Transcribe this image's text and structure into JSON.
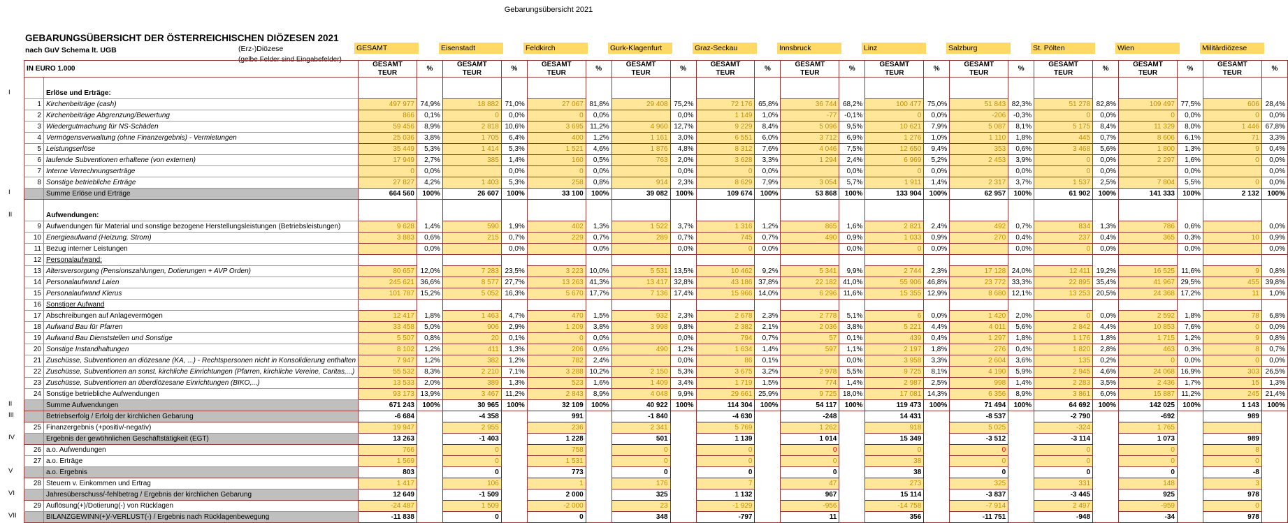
{
  "page_title": "Gebarungsübersicht 2021",
  "header": {
    "title": "GEBARUNGSÜBERSICHT DER ÖSTERREICHISCHEN DIÖZESEN 2021",
    "subtitle": "nach GuV Schema lt. UGB",
    "diocese_label": "(Erz-)Diözese",
    "note": "(gelbe Felder sind Eingabefelder)",
    "unit_label": "IN EURO 1.000",
    "col_value_line1": "GESAMT",
    "col_value_line2": "TEUR",
    "col_pct_label": "%",
    "sum_pct_label": "100%"
  },
  "colors": {
    "input_cell": "#FFE699",
    "diocese_tab": "#FFD966",
    "grid_maroon": "#963634",
    "sum_label_gray": "#BFBFBF",
    "input_text_gold": "#BF8F00",
    "negative_red": "#FF0000"
  },
  "dioceses": [
    "GESAMT",
    "Eisenstadt",
    "Feldkirch",
    "Gurk-Klagenfurt",
    "Graz-Seckau",
    "Innsbruck",
    "Linz",
    "Salzburg",
    "St. Pölten",
    "Wien",
    "Militärdiözese"
  ],
  "rows": [
    {
      "t": "sp",
      "h": 8
    },
    {
      "t": "sec",
      "r": "I",
      "l": "Erlöse und Erträge:"
    },
    {
      "t": "d",
      "n": "1",
      "it": 1,
      "l": "Kirchenbeiträge (cash)",
      "v": [
        "497 977",
        "18 882",
        "27 067",
        "29 408",
        "72 176",
        "36 744",
        "100 477",
        "51 843",
        "51 278",
        "109 497",
        "606"
      ],
      "p": [
        "74,9%",
        "71,0%",
        "81,8%",
        "75,2%",
        "65,8%",
        "68,2%",
        "75,0%",
        "82,3%",
        "82,8%",
        "77,5%",
        "28,4%"
      ]
    },
    {
      "t": "d",
      "n": "2",
      "it": 1,
      "l": "Kirchenbeiträge Abgrenzung/Bewertung",
      "v": [
        "866",
        "0",
        "0",
        "",
        "1 149",
        "-77",
        "0",
        "-206",
        "0",
        "0",
        "0"
      ],
      "p": [
        "0,1%",
        "0,0%",
        "0,0%",
        "0,0%",
        "1,0%",
        "-0,1%",
        "0,0%",
        "-0,3%",
        "0,0%",
        "0,0%",
        "0,0%"
      ]
    },
    {
      "t": "d",
      "n": "3",
      "it": 1,
      "l": "Wiedergutmachung für NS-Schäden",
      "v": [
        "59 456",
        "2 818",
        "3 695",
        "4 960",
        "9 229",
        "5 096",
        "10 621",
        "5 087",
        "5 175",
        "11 329",
        "1 446"
      ],
      "p": [
        "8,9%",
        "10,6%",
        "11,2%",
        "12,7%",
        "8,4%",
        "9,5%",
        "7,9%",
        "8,1%",
        "8,4%",
        "8,0%",
        "67,8%"
      ]
    },
    {
      "t": "d",
      "n": "4",
      "it": 1,
      "l": "Vermögensverwaltung (ohne Finanzergebnis) - Vermietungen",
      "v": [
        "25 036",
        "1 705",
        "400",
        "1 161",
        "6 551",
        "3 712",
        "1 276",
        "1 110",
        "445",
        "8 606",
        "71"
      ],
      "p": [
        "3,8%",
        "6,4%",
        "1,2%",
        "3,0%",
        "6,0%",
        "6,9%",
        "1,0%",
        "1,8%",
        "0,7%",
        "6,1%",
        "3,3%"
      ]
    },
    {
      "t": "d",
      "n": "5",
      "it": 1,
      "l": "Leistungserlöse",
      "v": [
        "35 449",
        "1 414",
        "1 521",
        "1 876",
        "8 312",
        "4 046",
        "12 650",
        "353",
        "3 468",
        "1 800",
        "9"
      ],
      "p": [
        "5,3%",
        "5,3%",
        "4,6%",
        "4,8%",
        "7,6%",
        "7,5%",
        "9,4%",
        "0,6%",
        "5,6%",
        "1,3%",
        "0,4%"
      ]
    },
    {
      "t": "d",
      "n": "6",
      "it": 1,
      "l": "laufende Subventionen erhaltene (von externen)",
      "v": [
        "17 949",
        "385",
        "160",
        "763",
        "3 628",
        "1 294",
        "6 969",
        "2 453",
        "0",
        "2 297",
        "0"
      ],
      "p": [
        "2,7%",
        "1,4%",
        "0,5%",
        "2,0%",
        "3,3%",
        "2,4%",
        "5,2%",
        "3,9%",
        "0,0%",
        "1,6%",
        "0,0%"
      ]
    },
    {
      "t": "d",
      "n": "7",
      "it": 1,
      "l": "Interne Verrechnungserträge",
      "v": [
        "0",
        "",
        "0",
        "",
        "0",
        "",
        "0",
        "",
        "0",
        "",
        ""
      ],
      "p": [
        "0,0%",
        "0,0%",
        "0,0%",
        "0,0%",
        "0,0%",
        "0,0%",
        "0,0%",
        "0,0%",
        "0,0%",
        "0,0%",
        "0,0%"
      ]
    },
    {
      "t": "d",
      "n": "8",
      "it": 1,
      "l": "Sonstige betriebliche Erträge",
      "v": [
        "27 827",
        "1 403",
        "258",
        "914",
        "8 629",
        "3 054",
        "1 911",
        "2 317",
        "1 537",
        "7 804",
        "0"
      ],
      "p": [
        "4,2%",
        "5,3%",
        "0,8%",
        "2,3%",
        "7,9%",
        "5,7%",
        "1,4%",
        "3,7%",
        "2,5%",
        "5,5%",
        "0,0%"
      ]
    },
    {
      "t": "sum",
      "r": "I",
      "l": "Summe Erlöse und Erträge",
      "v": [
        "664 560",
        "26 607",
        "33 100",
        "39 082",
        "109 674",
        "53 868",
        "133 904",
        "62 957",
        "61 902",
        "141 333",
        "2 132"
      ]
    },
    {
      "t": "sp",
      "h": 10
    },
    {
      "t": "sec",
      "r": "II",
      "l": "Aufwendungen:"
    },
    {
      "t": "d",
      "n": "9",
      "it": 0,
      "l": "Aufwendungen für Material und sonstige bezogene Herstellungsleistungen (Betriebsleistungen)",
      "v": [
        "9 628",
        "590",
        "402",
        "1 522",
        "1 316",
        "865",
        "2 821",
        "492",
        "834",
        "786",
        ""
      ],
      "p": [
        "1,4%",
        "1,9%",
        "1,3%",
        "3,7%",
        "1,2%",
        "1,6%",
        "2,4%",
        "0,7%",
        "1,3%",
        "0,6%",
        "0,0%"
      ]
    },
    {
      "t": "d",
      "n": "10",
      "it": 1,
      "l": "Energieaufwand (Heizung, Strom)",
      "v": [
        "3 883",
        "215",
        "229",
        "289",
        "745",
        "490",
        "1 033",
        "270",
        "237",
        "365",
        "10"
      ],
      "p": [
        "0,6%",
        "0,7%",
        "0,7%",
        "0,7%",
        "0,7%",
        "0,9%",
        "0,9%",
        "0,4%",
        "0,4%",
        "0,3%",
        "0,9%"
      ]
    },
    {
      "t": "d",
      "n": "11",
      "it": 0,
      "l": "Bezug interner Leistungen",
      "v": [
        "",
        "",
        "",
        "",
        "0",
        "",
        "0",
        "",
        "0",
        "",
        ""
      ],
      "p": [
        "0,0%",
        "0,0%",
        "0,0%",
        "0,0%",
        "0,0%",
        "0,0%",
        "0,0%",
        "0,0%",
        "0,0%",
        "0,0%",
        "0,0%"
      ]
    },
    {
      "t": "sub",
      "n": "12",
      "l": "Personalaufwand:"
    },
    {
      "t": "d",
      "n": "13",
      "it": 1,
      "l": "Altersversorgung (Pensionszahlungen, Dotierungen + AVP Orden)",
      "v": [
        "80 657",
        "7 283",
        "3 223",
        "5 531",
        "10 462",
        "5 341",
        "2 744",
        "17 128",
        "12 411",
        "16 525",
        "9"
      ],
      "p": [
        "12,0%",
        "23,5%",
        "10,0%",
        "13,5%",
        "9,2%",
        "9,9%",
        "2,3%",
        "24,0%",
        "19,2%",
        "11,6%",
        "0,8%"
      ]
    },
    {
      "t": "d",
      "n": "14",
      "it": 1,
      "l": "Personalaufwand Laien",
      "v": [
        "245 621",
        "8 577",
        "13 263",
        "13 417",
        "43 186",
        "22 182",
        "55 906",
        "23 772",
        "22 895",
        "41 967",
        "455"
      ],
      "p": [
        "36,6%",
        "27,7%",
        "41,3%",
        "32,8%",
        "37,8%",
        "41,0%",
        "46,8%",
        "33,3%",
        "35,4%",
        "29,5%",
        "39,8%"
      ]
    },
    {
      "t": "d",
      "n": "15",
      "it": 1,
      "l": "Personalaufwand Klerus",
      "v": [
        "101 787",
        "5 052",
        "5 670",
        "7 136",
        "15 966",
        "6 296",
        "15 355",
        "8 680",
        "13 253",
        "24 368",
        "11"
      ],
      "p": [
        "15,2%",
        "16,3%",
        "17,7%",
        "17,4%",
        "14,0%",
        "11,6%",
        "12,9%",
        "12,1%",
        "20,5%",
        "17,2%",
        "1,0%"
      ]
    },
    {
      "t": "sub",
      "n": "16",
      "l": "Sonstiger Aufwand"
    },
    {
      "t": "d",
      "n": "17",
      "it": 0,
      "l": "Abschreibungen auf Anlagevermögen",
      "v": [
        "12 417",
        "1 463",
        "470",
        "932",
        "2 678",
        "2 778",
        "6",
        "1 420",
        "0",
        "2 592",
        "78"
      ],
      "p": [
        "1,8%",
        "4,7%",
        "1,5%",
        "2,3%",
        "2,3%",
        "5,1%",
        "0,0%",
        "2,0%",
        "0,0%",
        "1,8%",
        "6,8%"
      ]
    },
    {
      "t": "d",
      "n": "18",
      "it": 1,
      "l": "Aufwand Bau für Pfarren",
      "v": [
        "33 458",
        "906",
        "1 209",
        "3 998",
        "2 382",
        "2 036",
        "5 221",
        "4 011",
        "2 842",
        "10 853",
        "0"
      ],
      "p": [
        "5,0%",
        "2,9%",
        "3,8%",
        "9,8%",
        "2,1%",
        "3,8%",
        "4,4%",
        "5,6%",
        "4,4%",
        "7,6%",
        "0,0%"
      ]
    },
    {
      "t": "d",
      "n": "19",
      "it": 1,
      "l": "Aufwand Bau Dienststellen und Sonstige",
      "v": [
        "5 507",
        "20",
        "0",
        "",
        "794",
        "57",
        "439",
        "1 297",
        "1 176",
        "1 715",
        "9"
      ],
      "p": [
        "0,8%",
        "0,1%",
        "0,0%",
        "0,0%",
        "0,7%",
        "0,1%",
        "0,4%",
        "1,8%",
        "1,8%",
        "1,2%",
        "0,8%"
      ]
    },
    {
      "t": "d",
      "n": "20",
      "it": 1,
      "l": "Sonstige Instandhaltungen",
      "v": [
        "8 102",
        "411",
        "206",
        "490",
        "1 634",
        "597",
        "2 197",
        "276",
        "1 820",
        "463",
        "8"
      ],
      "p": [
        "1,2%",
        "1,3%",
        "0,6%",
        "1,2%",
        "1,4%",
        "1,1%",
        "1,8%",
        "0,4%",
        "2,8%",
        "0,3%",
        "0,7%"
      ]
    },
    {
      "t": "d",
      "n": "21",
      "it": 1,
      "l": "Zuschüsse, Subventionen an diözesane (KA, ...) - Rechtspersonen nicht in Konsolidierung enthalten",
      "v": [
        "7 947",
        "382",
        "782",
        "",
        "86",
        "",
        "3 958",
        "2 604",
        "135",
        "0",
        "0"
      ],
      "p": [
        "1,2%",
        "1,2%",
        "2,4%",
        "0,0%",
        "0,1%",
        "0,0%",
        "3,3%",
        "3,6%",
        "0,2%",
        "0,0%",
        "0,0%"
      ]
    },
    {
      "t": "d",
      "n": "22",
      "it": 1,
      "l": "Zuschüsse, Subventionen an sonst. kirchliche Einrichtungen (Pfarren, kirchliche Vereine, Caritas,...)",
      "v": [
        "55 532",
        "2 210",
        "3 288",
        "2 150",
        "3 675",
        "2 978",
        "9 725",
        "4 190",
        "2 945",
        "24 068",
        "303"
      ],
      "p": [
        "8,3%",
        "7,1%",
        "10,2%",
        "5,3%",
        "3,2%",
        "5,5%",
        "8,1%",
        "5,9%",
        "4,6%",
        "16,9%",
        "26,5%"
      ]
    },
    {
      "t": "d",
      "n": "23",
      "it": 1,
      "l": "Zuschüsse, Subventionen an überdiözesane Einrichtungen (BIKO,...)",
      "v": [
        "13 533",
        "389",
        "523",
        "1 409",
        "1 719",
        "774",
        "2 987",
        "998",
        "2 283",
        "2 436",
        "15"
      ],
      "p": [
        "2,0%",
        "1,3%",
        "1,6%",
        "3,4%",
        "1,5%",
        "1,4%",
        "2,5%",
        "1,4%",
        "3,5%",
        "1,7%",
        "1,3%"
      ]
    },
    {
      "t": "d",
      "n": "24",
      "it": 0,
      "l": "Sonstige betriebliche Aufwendungen",
      "v": [
        "93 173",
        "3 467",
        "2 843",
        "4 048",
        "29 661",
        "9 725",
        "17 081",
        "6 356",
        "3 861",
        "15 887",
        "245"
      ],
      "p": [
        "13,9%",
        "11,2%",
        "8,9%",
        "9,9%",
        "25,9%",
        "18,0%",
        "14,3%",
        "8,9%",
        "6,0%",
        "11,2%",
        "21,4%"
      ]
    },
    {
      "t": "sum",
      "r": "II",
      "l": "Summe Aufwendungen",
      "v": [
        "671 243",
        "30 965",
        "32 109",
        "40 922",
        "114 304",
        "54 117",
        "119 473",
        "71 494",
        "64 692",
        "142 025",
        "1 143"
      ]
    },
    {
      "t": "res",
      "r": "III",
      "l": "Betriebserfolg / Erfolg der kirchlichen Gebarung",
      "v": [
        "-6 684",
        "-4 358",
        "991",
        "-1 840",
        "-4 630",
        "-248",
        "14 431",
        "-8 537",
        "-2 790",
        "-692",
        "989"
      ]
    },
    {
      "t": "d",
      "n": "25",
      "it": 0,
      "l": "Finanzergebnis (+positiv/-negativ)",
      "v": [
        "19 947",
        "2 955",
        "236",
        "2 341",
        "5 769",
        "1 262",
        "918",
        "5 025",
        "-324",
        "1 765",
        ""
      ]
    },
    {
      "t": "res",
      "r": "IV",
      "l": "Ergebnis der gewöhnlichen Geschäftstätigkeit (EGT)",
      "v": [
        "13 263",
        "-1 403",
        "1 228",
        "501",
        "1 139",
        "1 014",
        "15 349",
        "-3 512",
        "-3 114",
        "1 073",
        "989"
      ]
    },
    {
      "t": "d",
      "n": "26",
      "it": 0,
      "l": "a.o. Aufwendungen",
      "v": [
        "766",
        "0",
        "758",
        "0",
        "0",
        "0",
        "0",
        "0",
        "0",
        "0",
        "8"
      ],
      "red": [
        5,
        7
      ]
    },
    {
      "t": "d",
      "n": "27",
      "it": 0,
      "l": "a.o. Erträge",
      "v": [
        "1 569",
        "0",
        "1 531",
        "0",
        "0",
        "0",
        "38",
        "0",
        "0",
        "0",
        "0"
      ]
    },
    {
      "t": "res",
      "r": "V",
      "l": "a.o. Ergebnis",
      "v": [
        "803",
        "0",
        "773",
        "0",
        "0",
        "0",
        "38",
        "0",
        "0",
        "0",
        "-8"
      ]
    },
    {
      "t": "d",
      "n": "28",
      "it": 0,
      "l": "Steuern v. Einkommen und Ertrag",
      "v": [
        "1 417",
        "106",
        "1",
        "176",
        "7",
        "47",
        "273",
        "325",
        "331",
        "148",
        "3"
      ]
    },
    {
      "t": "res",
      "r": "VI",
      "l": "Jahresüberschuss/-fehlbetrag / Ergebnis der kirchlichen Gebarung",
      "v": [
        "12 649",
        "-1 509",
        "2 000",
        "325",
        "1 132",
        "967",
        "15 114",
        "-3 837",
        "-3 445",
        "925",
        "978"
      ]
    },
    {
      "t": "d",
      "n": "29",
      "it": 0,
      "l": "Auflösung(+)/Dotierung(-) von Rücklagen",
      "v": [
        "-24 487",
        "1 509",
        "-2 000",
        "23",
        "-1 929",
        "-956",
        "-14 758",
        "-7 914",
        "2 497",
        "-959",
        "0"
      ]
    },
    {
      "t": "res",
      "r": "VII",
      "l": "BILANZGEWINN(+)/-VERLUST(-) / Ergebnis nach Rücklagenbewegung",
      "v": [
        "-11 838",
        "0",
        "0",
        "348",
        "-797",
        "11",
        "356",
        "-11 751",
        "-948",
        "-34",
        "978"
      ]
    }
  ]
}
